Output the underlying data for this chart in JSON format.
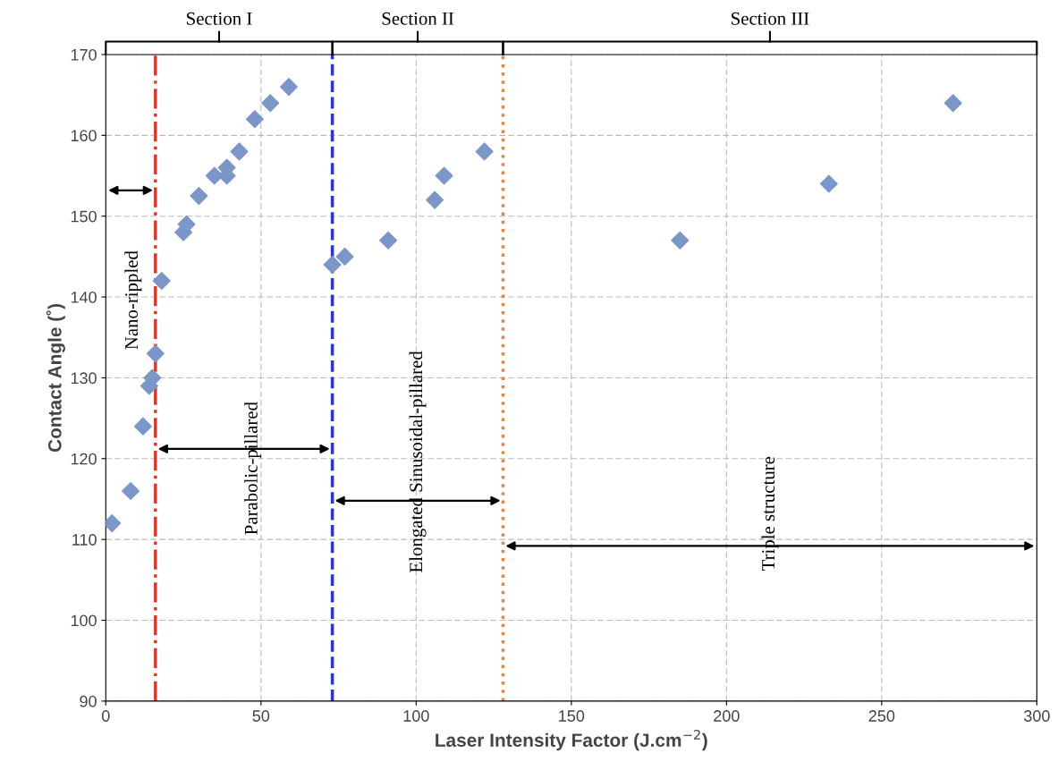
{
  "chart_data": {
    "type": "scatter",
    "xlabel": "Laser Intensity Factor (J.cm$^{−2}$)",
    "ylabel": "Contact Angle (˚)",
    "x": [
      2,
      8,
      12,
      14,
      15,
      16,
      18,
      25,
      26,
      30,
      35,
      39,
      39,
      43,
      48,
      53,
      59,
      73,
      77,
      91,
      106,
      109,
      122,
      185,
      233,
      273
    ],
    "series": [
      {
        "color": "#7b96c8",
        "values": [
          112,
          116,
          124,
          129,
          130,
          133,
          142,
          148,
          149,
          152.5,
          155,
          156,
          155,
          158,
          162,
          164,
          166,
          144,
          145,
          147,
          152,
          155,
          158,
          147,
          154,
          164
        ]
      }
    ],
    "marker": "diamond",
    "grid": true,
    "xlim": [
      0,
      300
    ],
    "xticks": [
      0,
      50,
      100,
      150,
      200,
      250,
      300
    ],
    "ylim": [
      90,
      170
    ],
    "yticks": [
      90,
      100,
      110,
      120,
      130,
      140,
      150,
      160,
      170
    ],
    "ref_lines": [
      {
        "axis": "x",
        "value": 16,
        "color": "#e8321e",
        "line_style": "dashdot"
      },
      {
        "axis": "x",
        "value": 73,
        "color": "#2233ee",
        "line_style": "dashed"
      },
      {
        "axis": "x",
        "value": 128,
        "color": "#f08040",
        "line_style": "dotted"
      }
    ],
    "annotations": [
      "Section I",
      "Section II",
      "Section III",
      "Nano-rippled",
      "Parabolic-pillared",
      "Elongated Sinusoidal-pillared",
      "Triple structure"
    ]
  }
}
